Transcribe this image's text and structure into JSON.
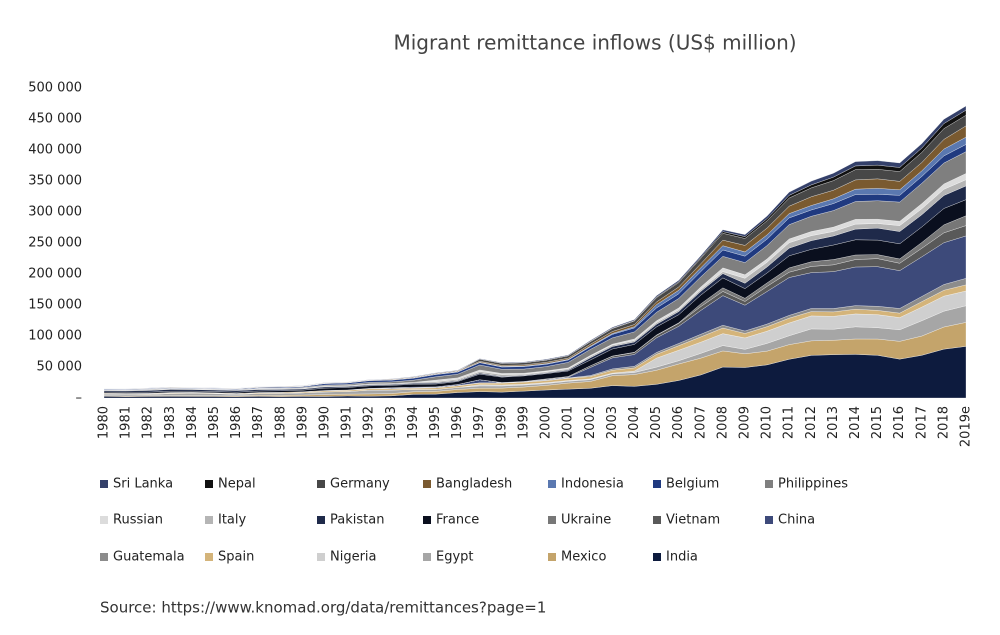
{
  "chart_data": {
    "type": "stacked_area",
    "title": "Migrant remittance inflows (US$ million)",
    "source": "Source: https://www.knomad.org/data/remittances?page=1",
    "categories": [
      "1980",
      "1981",
      "1982",
      "1983",
      "1984",
      "1985",
      "1986",
      "1987",
      "1988",
      "1989",
      "1990",
      "1991",
      "1992",
      "1993",
      "1994",
      "1995",
      "1996",
      "1997",
      "1998",
      "1999",
      "2000",
      "2001",
      "2002",
      "2003",
      "2004",
      "2005",
      "2006",
      "2007",
      "2008",
      "2009",
      "2010",
      "2011",
      "2012",
      "2013",
      "2014",
      "2015",
      "2016",
      "2017",
      "2018",
      "2019e"
    ],
    "ylim": [
      0,
      500000
    ],
    "yticks": [
      {
        "value": 0,
        "label": "–"
      },
      {
        "value": 50000,
        "label": "50 000"
      },
      {
        "value": 100000,
        "label": "100 000"
      },
      {
        "value": 150000,
        "label": "150 000"
      },
      {
        "value": 200000,
        "label": "200 000"
      },
      {
        "value": 250000,
        "label": "250 000"
      },
      {
        "value": 300000,
        "label": "300 000"
      },
      {
        "value": 350000,
        "label": "350 000"
      },
      {
        "value": 400000,
        "label": "400 000"
      },
      {
        "value": 450000,
        "label": "450 000"
      },
      {
        "value": 500000,
        "label": "500 000"
      }
    ],
    "series": [
      {
        "name": "Sri Lanka",
        "color": "#34406a",
        "values": [
          200,
          200,
          300,
          300,
          300,
          300,
          300,
          300,
          400,
          400,
          400,
          400,
          500,
          600,
          700,
          800,
          800,
          900,
          1000,
          1100,
          1200,
          1200,
          1300,
          1400,
          1600,
          2000,
          2200,
          2500,
          2900,
          3300,
          4100,
          5200,
          6000,
          6400,
          7000,
          7200,
          7300,
          7200,
          7000,
          6700
        ]
      },
      {
        "name": "Nepal",
        "color": "#111111",
        "values": [
          0,
          0,
          0,
          0,
          0,
          0,
          0,
          0,
          0,
          0,
          0,
          0,
          0,
          100,
          100,
          100,
          100,
          100,
          100,
          100,
          100,
          100,
          700,
          800,
          800,
          1200,
          1500,
          1700,
          2700,
          3000,
          3500,
          4200,
          4800,
          5600,
          5900,
          6700,
          6600,
          7000,
          8100,
          8200
        ]
      },
      {
        "name": "Germany",
        "color": "#474747",
        "values": [
          0,
          0,
          0,
          0,
          0,
          0,
          0,
          0,
          0,
          0,
          0,
          0,
          0,
          0,
          0,
          0,
          0,
          3400,
          3300,
          3400,
          3600,
          3800,
          4100,
          4700,
          5600,
          6900,
          7000,
          8600,
          11100,
          11200,
          11800,
          13200,
          14300,
          15500,
          16600,
          15400,
          15800,
          16200,
          17400,
          17100
        ]
      },
      {
        "name": "Bangladesh",
        "color": "#7a5a30",
        "values": [
          200,
          400,
          500,
          600,
          500,
          500,
          600,
          800,
          800,
          800,
          800,
          800,
          900,
          1000,
          1200,
          1200,
          1300,
          1500,
          1600,
          1800,
          2000,
          2100,
          2900,
          3200,
          3600,
          4300,
          5400,
          6600,
          9000,
          10500,
          10900,
          12000,
          14100,
          13900,
          15000,
          15300,
          13600,
          13500,
          15600,
          18300
        ]
      },
      {
        "name": "Indonesia",
        "color": "#5a78b0",
        "values": [
          0,
          0,
          0,
          100,
          100,
          100,
          100,
          100,
          200,
          200,
          200,
          300,
          300,
          300,
          400,
          700,
          800,
          700,
          1000,
          1100,
          1200,
          1000,
          1300,
          1500,
          1900,
          5400,
          5700,
          6200,
          6800,
          6800,
          6900,
          6900,
          7200,
          7600,
          8600,
          9600,
          8900,
          9000,
          11000,
          11700
        ]
      },
      {
        "name": "Belgium",
        "color": "#203a80",
        "values": [
          1100,
          1000,
          900,
          900,
          900,
          900,
          1000,
          1300,
          1400,
          1400,
          2300,
          2300,
          2800,
          2800,
          3200,
          3600,
          3400,
          3700,
          3600,
          3900,
          3600,
          3700,
          4100,
          5600,
          6400,
          7000,
          7500,
          8500,
          10300,
          10400,
          10400,
          10900,
          10200,
          11300,
          11300,
          10400,
          10900,
          11100,
          11500,
          11700
        ]
      },
      {
        "name": "Philippines",
        "color": "#7f7f7f",
        "values": [
          400,
          600,
          800,
          700,
          500,
          400,
          400,
          600,
          900,
          1200,
          1500,
          1900,
          2500,
          2600,
          3500,
          5400,
          5900,
          8100,
          6800,
          6800,
          7000,
          9000,
          9800,
          10200,
          11500,
          13700,
          15300,
          16300,
          18600,
          19700,
          21600,
          23100,
          24600,
          26700,
          28700,
          29800,
          31100,
          32800,
          33800,
          35200
        ]
      },
      {
        "name": "Russian",
        "color": "#dcdcdc",
        "values": [
          0,
          0,
          0,
          0,
          0,
          0,
          0,
          0,
          0,
          0,
          0,
          0,
          0,
          0,
          0,
          2500,
          2300,
          2400,
          1800,
          1500,
          1300,
          1400,
          1400,
          1500,
          2500,
          2900,
          3100,
          4100,
          6000,
          5600,
          5300,
          6000,
          6700,
          7000,
          7800,
          6900,
          6900,
          8200,
          8500,
          10000
        ]
      },
      {
        "name": "Italy",
        "color": "#b5b5b5",
        "values": [
          1600,
          1500,
          1500,
          1300,
          1300,
          1200,
          1400,
          1500,
          1400,
          1300,
          1500,
          1500,
          1600,
          1600,
          1600,
          2100,
          2300,
          2600,
          3000,
          1700,
          1900,
          2000,
          2300,
          2200,
          2300,
          2700,
          2700,
          3000,
          3200,
          8000,
          7600,
          8800,
          8000,
          7300,
          8000,
          7500,
          9500,
          9700,
          10000,
          10000
        ]
      },
      {
        "name": "Pakistan",
        "color": "#1f2a4a",
        "values": [
          2000,
          2100,
          2600,
          2900,
          2500,
          2500,
          2600,
          2300,
          2000,
          1900,
          2000,
          1600,
          1500,
          1400,
          1500,
          1700,
          1300,
          1700,
          1100,
          1000,
          1100,
          1500,
          3600,
          4000,
          3900,
          4300,
          5100,
          6000,
          7000,
          8700,
          9700,
          12300,
          14000,
          14600,
          17200,
          19300,
          19800,
          19700,
          21000,
          22200
        ]
      },
      {
        "name": "France",
        "color": "#0a0f1e",
        "values": [
          2000,
          2000,
          2000,
          2000,
          2000,
          2000,
          2100,
          2500,
          2600,
          2600,
          4000,
          4000,
          4100,
          3900,
          4700,
          4600,
          4800,
          9000,
          8800,
          9000,
          8600,
          8900,
          9300,
          11400,
          12700,
          13000,
          13100,
          14000,
          16000,
          15600,
          16000,
          19500,
          20100,
          23400,
          24500,
          23400,
          24400,
          25000,
          26400,
          26000
        ]
      },
      {
        "name": "Ukraine",
        "color": "#777777",
        "values": [
          0,
          0,
          0,
          0,
          0,
          0,
          0,
          0,
          0,
          0,
          0,
          0,
          0,
          0,
          0,
          0,
          0,
          0,
          0,
          0,
          0,
          0,
          0,
          300,
          400,
          600,
          800,
          4500,
          5800,
          5100,
          5600,
          7000,
          7500,
          8500,
          7400,
          6500,
          7000,
          9400,
          12900,
          15800
        ]
      },
      {
        "name": "Vietnam",
        "color": "#595959",
        "values": [
          0,
          0,
          0,
          0,
          0,
          0,
          0,
          0,
          0,
          0,
          0,
          0,
          0,
          0,
          0,
          0,
          0,
          0,
          0,
          0,
          1300,
          1100,
          2700,
          2700,
          3200,
          4000,
          4800,
          6200,
          6800,
          6000,
          8300,
          8600,
          10000,
          11000,
          12000,
          13000,
          11900,
          13800,
          15900,
          16700
        ]
      },
      {
        "name": "China",
        "color": "#3d4a7a",
        "values": [
          0,
          0,
          600,
          600,
          300,
          200,
          200,
          200,
          100,
          200,
          200,
          300,
          400,
          1200,
          1300,
          1100,
          1700,
          5000,
          400,
          600,
          800,
          1200,
          13000,
          17800,
          19000,
          23600,
          27600,
          38400,
          47700,
          41600,
          52500,
          61000,
          57800,
          59500,
          62300,
          63900,
          61000,
          63900,
          67400,
          68400
        ]
      },
      {
        "name": "Guatemala",
        "color": "#8c8c8c",
        "values": [
          0,
          0,
          0,
          0,
          0,
          0,
          0,
          0,
          0,
          0,
          100,
          200,
          200,
          300,
          300,
          400,
          400,
          400,
          500,
          500,
          600,
          600,
          1600,
          2100,
          2600,
          3000,
          3600,
          4200,
          4500,
          4000,
          4200,
          4500,
          5000,
          5400,
          5800,
          6600,
          7500,
          8400,
          9300,
          10500
        ]
      },
      {
        "name": "Spain",
        "color": "#d4b47a",
        "values": [
          1100,
          1100,
          1100,
          1100,
          1000,
          1000,
          1100,
          1300,
          1500,
          1600,
          1900,
          2000,
          2200,
          2100,
          2200,
          2600,
          2700,
          2700,
          3000,
          3400,
          3400,
          3600,
          3800,
          4700,
          5200,
          6100,
          7400,
          8600,
          9100,
          7200,
          7300,
          7800,
          7000,
          7200,
          7600,
          6900,
          7200,
          8800,
          9500,
          9900
        ]
      },
      {
        "name": "Nigeria",
        "color": "#cfcfcf",
        "values": [
          0,
          0,
          0,
          0,
          0,
          0,
          0,
          0,
          0,
          0,
          0,
          0,
          0,
          0,
          0,
          0,
          0,
          1900,
          1600,
          1300,
          1400,
          1200,
          1200,
          1100,
          2300,
          14600,
          16900,
          18000,
          19200,
          18400,
          19700,
          20600,
          21000,
          20800,
          20800,
          21000,
          19700,
          22000,
          24300,
          23800
        ]
      },
      {
        "name": "Egypt",
        "color": "#a6a6a6",
        "values": [
          2700,
          2900,
          2100,
          3300,
          3900,
          3500,
          2500,
          3000,
          3400,
          3500,
          4300,
          4100,
          6100,
          5700,
          3700,
          3200,
          3200,
          3700,
          3400,
          3200,
          2900,
          2900,
          2900,
          3000,
          3300,
          5000,
          5300,
          7700,
          8700,
          7200,
          12500,
          14300,
          19200,
          17800,
          19600,
          18300,
          18600,
          24700,
          25500,
          26800
        ]
      },
      {
        "name": "Mexico",
        "color": "#c4a46b",
        "values": [
          1000,
          1000,
          1100,
          1200,
          1300,
          1200,
          1300,
          1600,
          1800,
          2200,
          3100,
          3000,
          3700,
          3700,
          4100,
          4400,
          5000,
          5500,
          6500,
          6600,
          7500,
          9800,
          11000,
          16000,
          19000,
          22700,
          26500,
          27100,
          26000,
          22100,
          22100,
          23600,
          23400,
          23200,
          24800,
          26200,
          28700,
          31000,
          35700,
          38700
        ]
      },
      {
        "name": "India",
        "color": "#0d1b3e",
        "values": [
          2800,
          2300,
          2600,
          2700,
          2600,
          2500,
          2200,
          2700,
          2300,
          2600,
          2400,
          3300,
          2900,
          3500,
          5900,
          6200,
          8800,
          10300,
          9500,
          11100,
          12900,
          14300,
          15700,
          20000,
          18800,
          22100,
          28300,
          37200,
          49900,
          49200,
          53500,
          62500,
          68800,
          69900,
          70400,
          68900,
          62700,
          68900,
          78800,
          83300
        ]
      }
    ]
  }
}
